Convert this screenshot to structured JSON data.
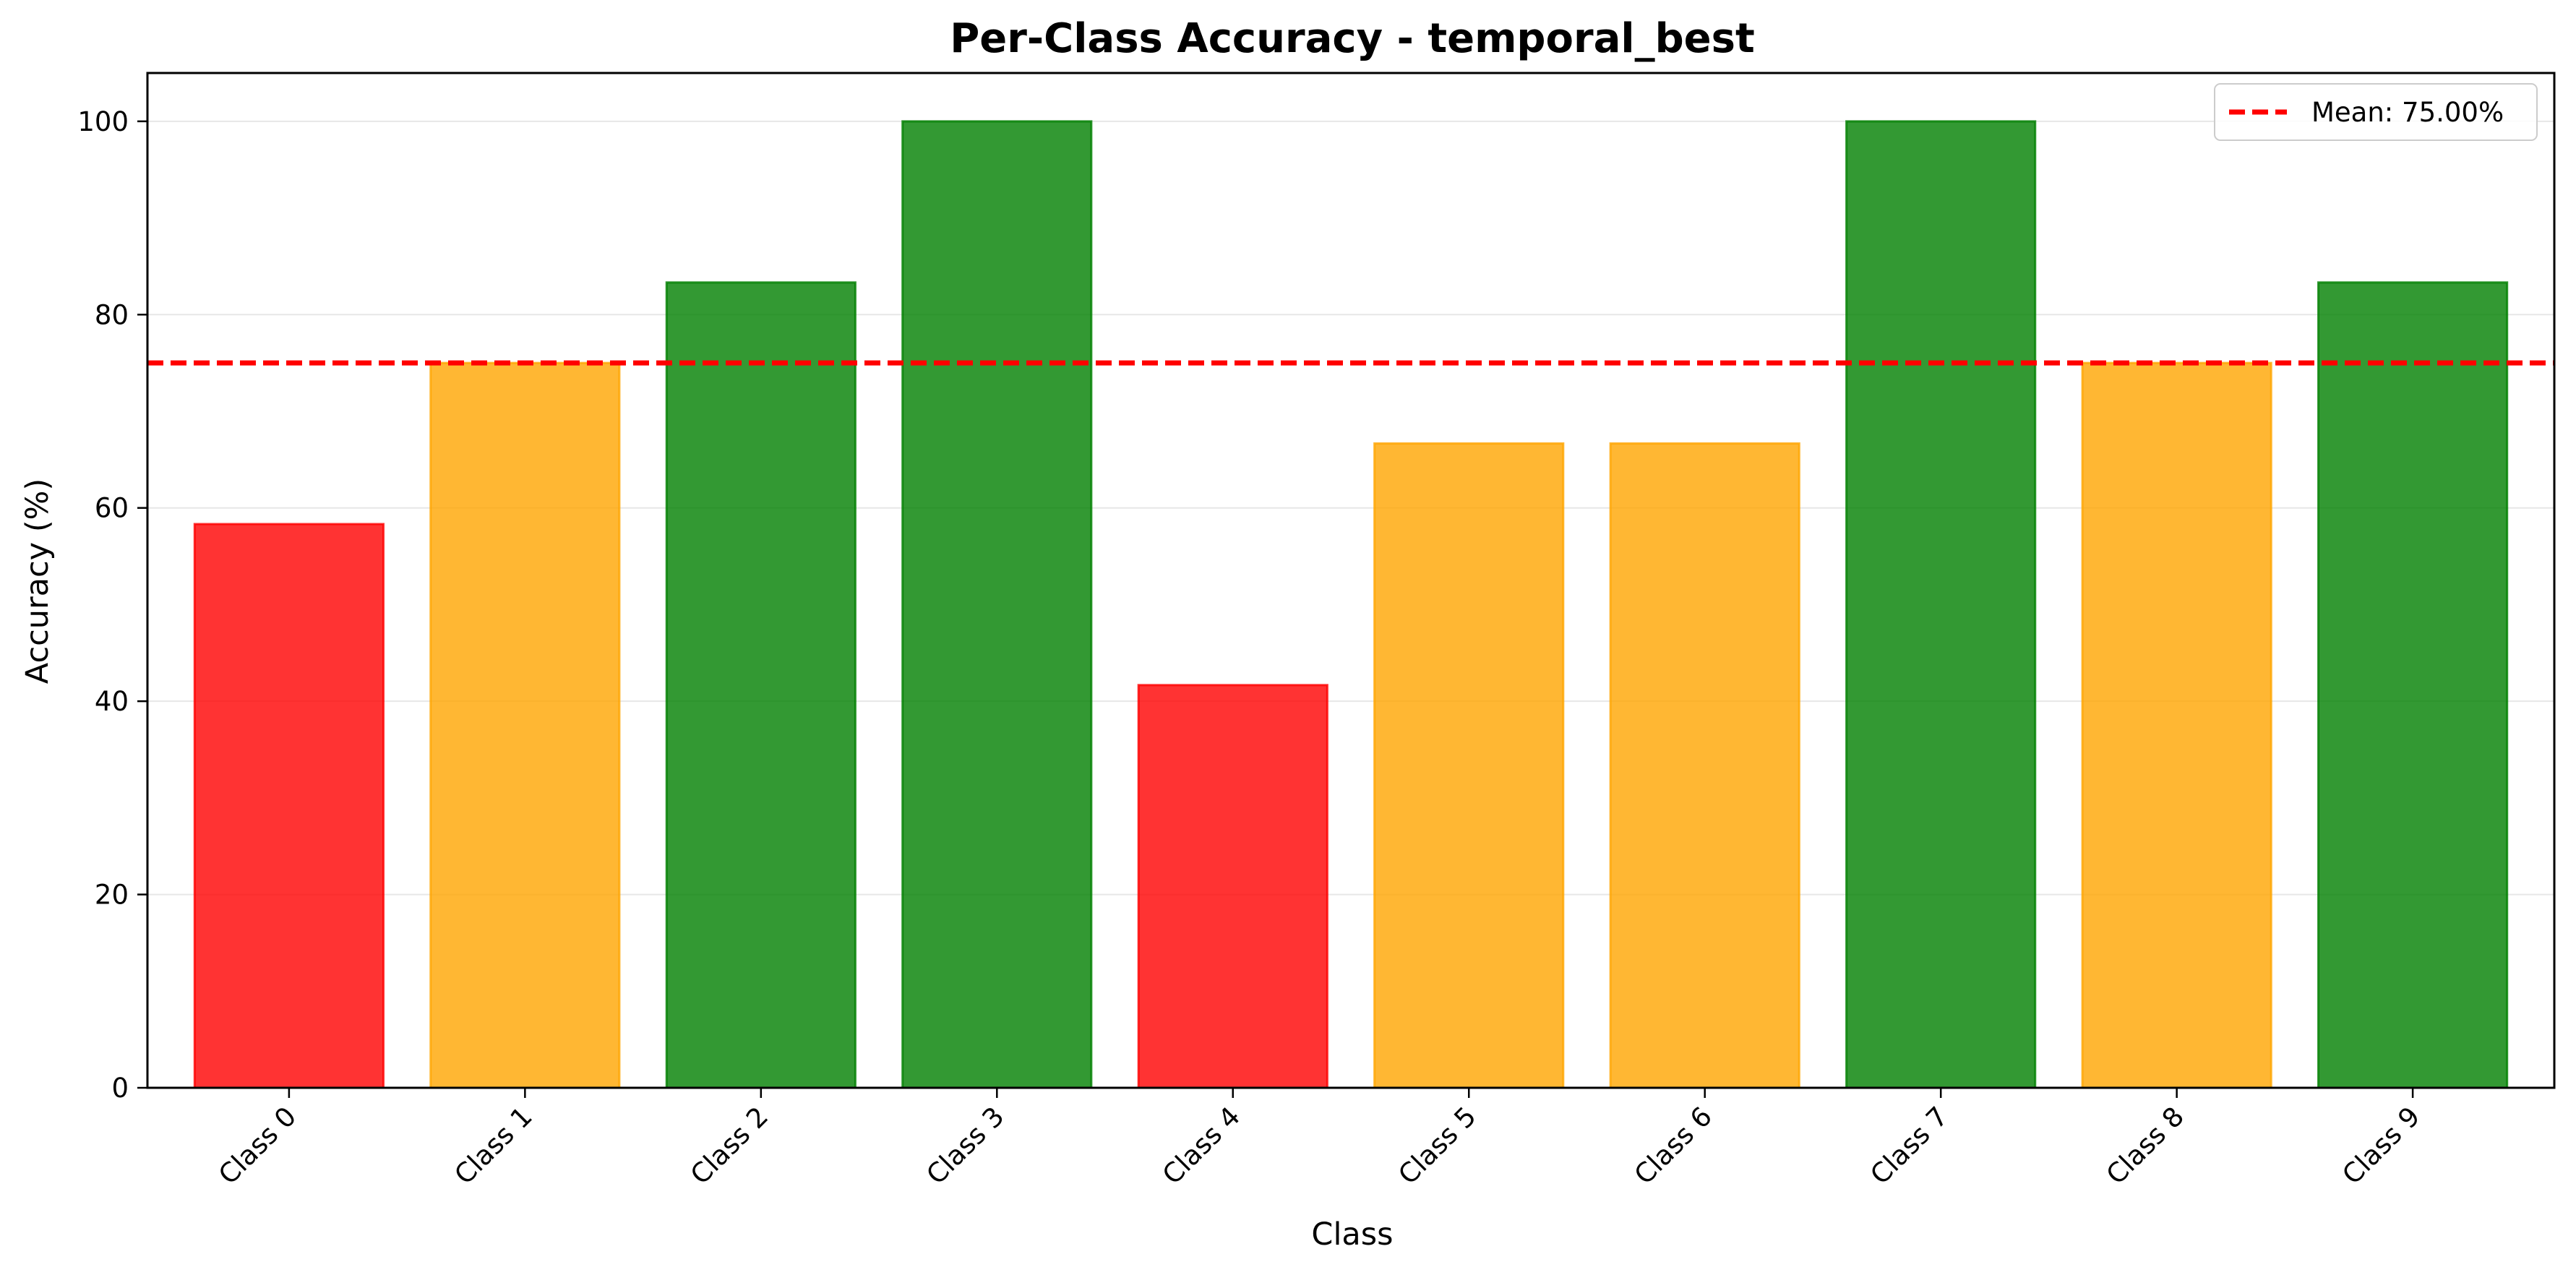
{
  "chart_data": {
    "type": "bar",
    "title": "Per-Class Accuracy - temporal_best",
    "xlabel": "Class",
    "ylabel": "Accuracy (%)",
    "categories": [
      "Class 0",
      "Class 1",
      "Class 2",
      "Class 3",
      "Class 4",
      "Class 5",
      "Class 6",
      "Class 7",
      "Class 8",
      "Class 9"
    ],
    "values": [
      58.33,
      75.0,
      83.33,
      100.0,
      41.67,
      66.67,
      66.67,
      100.0,
      75.0,
      83.33
    ],
    "bar_colors": [
      "#ff0000",
      "#ffa500",
      "#008000",
      "#008000",
      "#ff0000",
      "#ffa500",
      "#ffa500",
      "#008000",
      "#ffa500",
      "#008000"
    ],
    "bar_alpha": 0.8,
    "ylim": [
      0,
      105
    ],
    "yticks": [
      0,
      20,
      40,
      60,
      80,
      100
    ],
    "grid": "y",
    "mean_line": {
      "value": 75.0,
      "label": "Mean: 75.00%",
      "color": "#ff0000",
      "style": "dashed"
    },
    "legend": "top-right"
  }
}
